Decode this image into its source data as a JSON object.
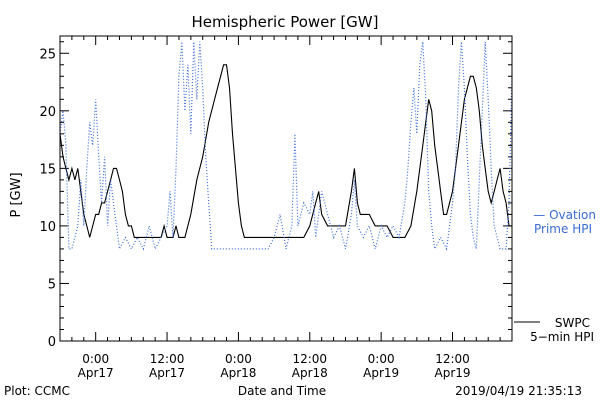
{
  "chart_data": {
    "type": "line",
    "title": "Hemispheric Power [GW]",
    "xlabel": "Date and Time",
    "ylabel": "P [GW]",
    "ylim": [
      0,
      26.5
    ],
    "xlim_hours": [
      -6,
      46
    ],
    "yticks": [
      {
        "value": 0,
        "label": "0"
      },
      {
        "value": 5,
        "label": "5"
      },
      {
        "value": 10,
        "label": "10"
      },
      {
        "value": 15,
        "label": "15"
      },
      {
        "value": 20,
        "label": "20"
      },
      {
        "value": 25,
        "label": "25"
      }
    ],
    "xticks": [
      {
        "hours": 0,
        "time": "0:00",
        "date": "Apr17"
      },
      {
        "hours": 12,
        "time": "12:00",
        "date": "Apr17"
      },
      {
        "hours": 24,
        "time": "0:00",
        "date": "Apr18"
      },
      {
        "hours": 36,
        "time": "12:00",
        "date": "Apr18"
      },
      {
        "hours": 48,
        "time": "0:00",
        "date": "Apr19"
      },
      {
        "hours": 60,
        "time": "12:00",
        "date": "Apr19"
      }
    ],
    "x_axis_start": "2019-04-16 18:00",
    "x_axis_end": "2019-04-19 22:00",
    "series": [
      {
        "name": "SWPC 5-min HPI",
        "style": "solid",
        "color": "#000000",
        "label_line1": "SWPC",
        "label_line2": "5−min HPI",
        "points": [
          [
            "2019-04-16 18:00",
            18
          ],
          [
            "2019-04-16 18:30",
            16
          ],
          [
            "2019-04-16 19:00",
            15
          ],
          [
            "2019-04-16 19:30",
            14
          ],
          [
            "2019-04-16 20:00",
            15
          ],
          [
            "2019-04-16 20:30",
            14
          ],
          [
            "2019-04-16 21:00",
            15
          ],
          [
            "2019-04-16 21:30",
            13
          ],
          [
            "2019-04-16 22:00",
            11
          ],
          [
            "2019-04-16 22:30",
            10
          ],
          [
            "2019-04-16 23:00",
            9
          ],
          [
            "2019-04-16 23:30",
            10
          ],
          [
            "2019-04-17 00:00",
            11
          ],
          [
            "2019-04-17 00:30",
            11
          ],
          [
            "2019-04-17 01:00",
            12
          ],
          [
            "2019-04-17 01:30",
            12
          ],
          [
            "2019-04-17 02:00",
            13
          ],
          [
            "2019-04-17 02:30",
            14
          ],
          [
            "2019-04-17 03:00",
            15
          ],
          [
            "2019-04-17 03:30",
            15
          ],
          [
            "2019-04-17 04:00",
            14
          ],
          [
            "2019-04-17 04:30",
            13
          ],
          [
            "2019-04-17 05:00",
            11
          ],
          [
            "2019-04-17 05:30",
            10
          ],
          [
            "2019-04-17 06:00",
            10
          ],
          [
            "2019-04-17 06:30",
            9
          ],
          [
            "2019-04-17 07:00",
            9
          ],
          [
            "2019-04-17 08:00",
            9
          ],
          [
            "2019-04-17 09:00",
            9
          ],
          [
            "2019-04-17 10:00",
            9
          ],
          [
            "2019-04-17 11:00",
            9
          ],
          [
            "2019-04-17 11:30",
            10
          ],
          [
            "2019-04-17 12:00",
            9
          ],
          [
            "2019-04-17 13:00",
            9
          ],
          [
            "2019-04-17 13:30",
            10
          ],
          [
            "2019-04-17 14:00",
            9
          ],
          [
            "2019-04-17 15:00",
            9
          ],
          [
            "2019-04-17 16:00",
            11
          ],
          [
            "2019-04-17 17:00",
            14
          ],
          [
            "2019-04-17 18:00",
            16
          ],
          [
            "2019-04-17 19:00",
            19
          ],
          [
            "2019-04-17 20:00",
            21
          ],
          [
            "2019-04-17 21:00",
            23
          ],
          [
            "2019-04-17 21:30",
            24
          ],
          [
            "2019-04-17 22:00",
            24
          ],
          [
            "2019-04-17 22:30",
            22
          ],
          [
            "2019-04-17 23:00",
            18
          ],
          [
            "2019-04-18 00:00",
            12
          ],
          [
            "2019-04-18 00:30",
            10
          ],
          [
            "2019-04-18 01:00",
            9
          ],
          [
            "2019-04-18 02:00",
            9
          ],
          [
            "2019-04-18 04:00",
            9
          ],
          [
            "2019-04-18 06:00",
            9
          ],
          [
            "2019-04-18 08:00",
            9
          ],
          [
            "2019-04-18 10:00",
            9
          ],
          [
            "2019-04-18 11:00",
            9
          ],
          [
            "2019-04-18 12:00",
            10
          ],
          [
            "2019-04-18 13:00",
            12
          ],
          [
            "2019-04-18 13:30",
            13
          ],
          [
            "2019-04-18 14:00",
            11
          ],
          [
            "2019-04-18 15:00",
            10
          ],
          [
            "2019-04-18 16:00",
            10
          ],
          [
            "2019-04-18 17:00",
            10
          ],
          [
            "2019-04-18 18:00",
            10
          ],
          [
            "2019-04-18 19:00",
            13
          ],
          [
            "2019-04-18 19:30",
            15
          ],
          [
            "2019-04-18 20:00",
            12
          ],
          [
            "2019-04-18 20:30",
            11
          ],
          [
            "2019-04-18 21:00",
            11
          ],
          [
            "2019-04-18 22:00",
            11
          ],
          [
            "2019-04-18 23:00",
            10
          ],
          [
            "2019-04-19 00:00",
            10
          ],
          [
            "2019-04-19 01:00",
            10
          ],
          [
            "2019-04-19 02:00",
            9
          ],
          [
            "2019-04-19 03:00",
            9
          ],
          [
            "2019-04-19 04:00",
            9
          ],
          [
            "2019-04-19 05:00",
            10
          ],
          [
            "2019-04-19 06:00",
            13
          ],
          [
            "2019-04-19 07:00",
            17
          ],
          [
            "2019-04-19 08:00",
            21
          ],
          [
            "2019-04-19 08:30",
            20
          ],
          [
            "2019-04-19 09:00",
            17
          ],
          [
            "2019-04-19 09:30",
            15
          ],
          [
            "2019-04-19 10:00",
            13
          ],
          [
            "2019-04-19 10:30",
            11
          ],
          [
            "2019-04-19 11:00",
            11
          ],
          [
            "2019-04-19 12:00",
            13
          ],
          [
            "2019-04-19 13:00",
            17
          ],
          [
            "2019-04-19 14:00",
            21
          ],
          [
            "2019-04-19 14:30",
            22
          ],
          [
            "2019-04-19 15:00",
            23
          ],
          [
            "2019-04-19 15:30",
            23
          ],
          [
            "2019-04-19 16:00",
            22
          ],
          [
            "2019-04-19 16:30",
            20
          ],
          [
            "2019-04-19 17:00",
            17
          ],
          [
            "2019-04-19 17:30",
            15
          ],
          [
            "2019-04-19 18:00",
            13
          ],
          [
            "2019-04-19 18:30",
            12
          ],
          [
            "2019-04-19 19:00",
            13
          ],
          [
            "2019-04-19 19:30",
            14
          ],
          [
            "2019-04-19 20:00",
            15
          ],
          [
            "2019-04-19 20:30",
            13
          ],
          [
            "2019-04-19 21:00",
            12
          ],
          [
            "2019-04-19 21:30",
            10
          ],
          [
            "2019-04-19 22:00",
            10
          ]
        ]
      },
      {
        "name": "Ovation Prime HPI",
        "style": "dotted",
        "color": "#3a6bd6",
        "label_line1": "— Ovation",
        "label_line2": "Prime HPI",
        "points": [
          [
            "2019-04-16 18:00",
            18
          ],
          [
            "2019-04-16 18:30",
            20
          ],
          [
            "2019-04-16 19:00",
            17
          ],
          [
            "2019-04-16 19:30",
            8
          ],
          [
            "2019-04-16 20:00",
            8
          ],
          [
            "2019-04-16 21:00",
            10
          ],
          [
            "2019-04-16 21:30",
            14
          ],
          [
            "2019-04-16 22:00",
            10
          ],
          [
            "2019-04-16 22:30",
            15
          ],
          [
            "2019-04-16 23:00",
            19
          ],
          [
            "2019-04-16 23:30",
            17
          ],
          [
            "2019-04-17 00:00",
            21
          ],
          [
            "2019-04-17 00:30",
            16
          ],
          [
            "2019-04-17 01:00",
            12
          ],
          [
            "2019-04-17 01:30",
            16
          ],
          [
            "2019-04-17 02:00",
            10
          ],
          [
            "2019-04-17 02:30",
            14
          ],
          [
            "2019-04-17 03:00",
            12
          ],
          [
            "2019-04-17 04:00",
            8
          ],
          [
            "2019-04-17 05:00",
            9
          ],
          [
            "2019-04-17 06:00",
            8
          ],
          [
            "2019-04-17 07:00",
            9
          ],
          [
            "2019-04-17 08:00",
            8
          ],
          [
            "2019-04-17 09:00",
            10
          ],
          [
            "2019-04-17 10:00",
            8
          ],
          [
            "2019-04-17 11:00",
            9
          ],
          [
            "2019-04-17 12:00",
            10
          ],
          [
            "2019-04-17 12:30",
            13
          ],
          [
            "2019-04-17 13:00",
            9
          ],
          [
            "2019-04-17 13:30",
            15
          ],
          [
            "2019-04-17 14:00",
            23
          ],
          [
            "2019-04-17 14:30",
            26
          ],
          [
            "2019-04-17 15:00",
            20
          ],
          [
            "2019-04-17 15:30",
            24
          ],
          [
            "2019-04-17 16:00",
            18
          ],
          [
            "2019-04-17 16:30",
            26
          ],
          [
            "2019-04-17 17:00",
            21
          ],
          [
            "2019-04-17 17:30",
            26
          ],
          [
            "2019-04-17 18:00",
            22
          ],
          [
            "2019-04-17 18:30",
            16
          ],
          [
            "2019-04-17 19:00",
            12
          ],
          [
            "2019-04-17 19:30",
            8
          ],
          [
            "2019-04-17 20:00",
            8
          ],
          [
            "2019-04-17 21:00",
            8
          ],
          [
            "2019-04-17 22:00",
            8
          ],
          [
            "2019-04-18 00:00",
            8
          ],
          [
            "2019-04-18 03:00",
            8
          ],
          [
            "2019-04-18 05:00",
            8
          ],
          [
            "2019-04-18 06:00",
            9
          ],
          [
            "2019-04-18 07:00",
            11
          ],
          [
            "2019-04-18 08:00",
            8
          ],
          [
            "2019-04-18 09:00",
            10
          ],
          [
            "2019-04-18 09:30",
            18
          ],
          [
            "2019-04-18 10:00",
            10
          ],
          [
            "2019-04-18 11:00",
            12
          ],
          [
            "2019-04-18 12:00",
            11
          ],
          [
            "2019-04-18 12:30",
            13
          ],
          [
            "2019-04-18 13:00",
            9
          ],
          [
            "2019-04-18 14:00",
            13
          ],
          [
            "2019-04-18 15:00",
            11
          ],
          [
            "2019-04-18 16:00",
            9
          ],
          [
            "2019-04-18 17:00",
            10
          ],
          [
            "2019-04-18 18:00",
            8
          ],
          [
            "2019-04-18 19:00",
            11
          ],
          [
            "2019-04-18 19:30",
            14
          ],
          [
            "2019-04-18 20:00",
            10
          ],
          [
            "2019-04-18 21:00",
            9
          ],
          [
            "2019-04-18 22:00",
            10
          ],
          [
            "2019-04-18 23:00",
            8
          ],
          [
            "2019-04-19 00:00",
            10
          ],
          [
            "2019-04-19 01:00",
            9
          ],
          [
            "2019-04-19 02:00",
            10
          ],
          [
            "2019-04-19 03:00",
            9
          ],
          [
            "2019-04-19 04:00",
            12
          ],
          [
            "2019-04-19 04:30",
            15
          ],
          [
            "2019-04-19 05:00",
            19
          ],
          [
            "2019-04-19 05:30",
            22
          ],
          [
            "2019-04-19 06:00",
            18
          ],
          [
            "2019-04-19 06:30",
            24
          ],
          [
            "2019-04-19 07:00",
            26
          ],
          [
            "2019-04-19 07:30",
            21
          ],
          [
            "2019-04-19 08:00",
            13
          ],
          [
            "2019-04-19 08:30",
            10
          ],
          [
            "2019-04-19 09:00",
            8
          ],
          [
            "2019-04-19 10:00",
            9
          ],
          [
            "2019-04-19 11:00",
            8
          ],
          [
            "2019-04-19 12:00",
            12
          ],
          [
            "2019-04-19 12:30",
            15
          ],
          [
            "2019-04-19 13:00",
            22
          ],
          [
            "2019-04-19 13:30",
            26
          ],
          [
            "2019-04-19 14:00",
            22
          ],
          [
            "2019-04-19 14:30",
            16
          ],
          [
            "2019-04-19 15:00",
            11
          ],
          [
            "2019-04-19 15:30",
            9
          ],
          [
            "2019-04-19 16:00",
            8
          ],
          [
            "2019-04-19 16:30",
            14
          ],
          [
            "2019-04-19 17:00",
            20
          ],
          [
            "2019-04-19 17:30",
            26
          ],
          [
            "2019-04-19 18:00",
            21
          ],
          [
            "2019-04-19 18:30",
            15
          ],
          [
            "2019-04-19 19:00",
            10
          ],
          [
            "2019-04-19 19:30",
            9
          ],
          [
            "2019-04-19 20:00",
            8
          ],
          [
            "2019-04-19 21:00",
            8
          ],
          [
            "2019-04-19 21:30",
            12
          ],
          [
            "2019-04-19 22:00",
            23
          ]
        ]
      }
    ]
  },
  "footer": {
    "plot_credit": "Plot: CCMC",
    "timestamp": "2019/04/19 21:35:13"
  }
}
